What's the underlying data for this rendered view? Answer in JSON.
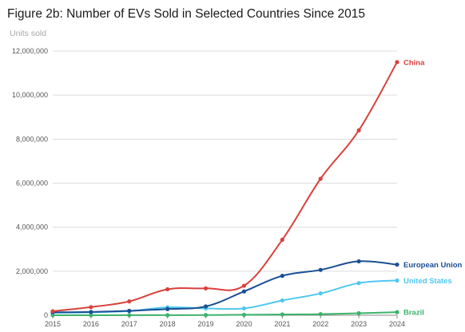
{
  "chart_data": {
    "type": "line",
    "title": "Figure 2b: Number of EVs Sold in Selected Countries Since 2015",
    "ylabel": "Units sold",
    "xlabel": "",
    "x": [
      2015,
      2016,
      2017,
      2018,
      2019,
      2020,
      2021,
      2022,
      2023,
      2024
    ],
    "x_tick_labels": [
      "2015",
      "2016",
      "2017",
      "2018",
      "2019",
      "2020",
      "2021",
      "2022",
      "2023",
      "2024"
    ],
    "ylim": [
      0,
      12000000
    ],
    "y_ticks": [
      0,
      2000000,
      4000000,
      6000000,
      8000000,
      10000000,
      12000000
    ],
    "y_tick_labels": [
      "0",
      "2,000,000",
      "4,000,000",
      "6,000,000",
      "8,000,000",
      "10,000,000",
      "12,000,000"
    ],
    "grid": true,
    "legend": "end-of-line labels",
    "series": [
      {
        "name": "China",
        "color": "#d9413d",
        "values": [
          180000,
          370000,
          630000,
          1180000,
          1220000,
          1340000,
          3430000,
          6200000,
          8400000,
          11500000
        ]
      },
      {
        "name": "European Union",
        "color": "#1a4f93",
        "values": [
          130000,
          150000,
          200000,
          280000,
          400000,
          1080000,
          1790000,
          2060000,
          2450000,
          2300000
        ]
      },
      {
        "name": "United States",
        "color": "#4fc8f0",
        "values": [
          110000,
          130000,
          190000,
          360000,
          310000,
          310000,
          670000,
          990000,
          1460000,
          1580000
        ]
      },
      {
        "name": "Brazil",
        "color": "#3db36b",
        "values": [
          1000,
          1500,
          2500,
          3500,
          8000,
          20000,
          35000,
          50000,
          90000,
          140000
        ]
      }
    ]
  }
}
